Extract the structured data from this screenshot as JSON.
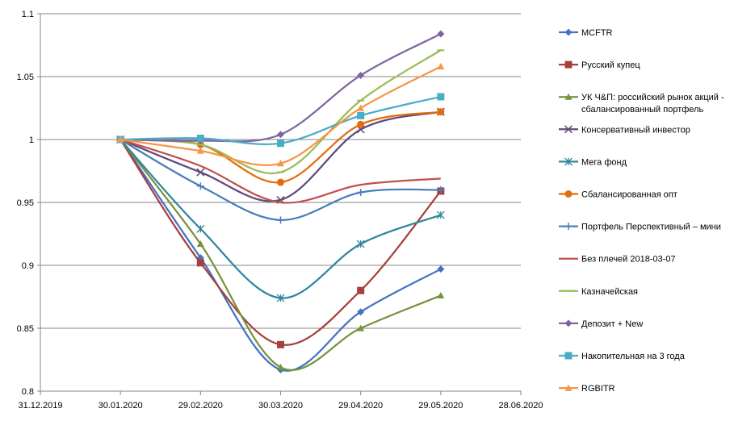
{
  "chart_data": {
    "type": "line",
    "title": "",
    "xlabel": "",
    "ylabel": "",
    "x_ticks": [
      "31.12.2019",
      "30.01.2020",
      "29.02.2020",
      "30.03.2020",
      "29.04.2020",
      "29.05.2020",
      "28.06.2020"
    ],
    "x": [
      "30.01.2020",
      "29.02.2020",
      "30.03.2020",
      "29.04.2020",
      "29.05.2020"
    ],
    "y_ticks": [
      "0.8",
      "0.85",
      "0.9",
      "0.95",
      "1",
      "1.05",
      "1.1"
    ],
    "ylim": [
      0.8,
      1.1
    ],
    "grid": "horizontal",
    "legend_position": "right",
    "series": [
      {
        "name": "MCFTR",
        "color": "#4472C4",
        "marker": "diamond",
        "values": [
          1.0,
          0.906,
          0.817,
          0.863,
          0.897
        ]
      },
      {
        "name": "Русский купец",
        "color": "#A5403E",
        "marker": "square",
        "values": [
          1.0,
          0.902,
          0.837,
          0.88,
          0.959
        ]
      },
      {
        "name": "УК Ч&П: российский рынок акций - сбалансированный портфель",
        "color": "#77933C",
        "marker": "triangle",
        "values": [
          1.0,
          0.917,
          0.819,
          0.85,
          0.876
        ]
      },
      {
        "name": "Консервативный инвестор",
        "color": "#604A7B",
        "marker": "x",
        "values": [
          1.0,
          0.974,
          0.952,
          1.008,
          1.022
        ]
      },
      {
        "name": "Мега фонд",
        "color": "#31859C",
        "marker": "star",
        "values": [
          1.0,
          0.929,
          0.874,
          0.917,
          0.94
        ]
      },
      {
        "name": "Сбалансированная опт",
        "color": "#E46C0A",
        "marker": "circle",
        "values": [
          1.0,
          0.996,
          0.966,
          1.012,
          1.022
        ]
      },
      {
        "name": "Портфель Перспективный – мини",
        "color": "#4A7EBB",
        "marker": "plus",
        "values": [
          1.0,
          0.963,
          0.936,
          0.958,
          0.96
        ]
      },
      {
        "name": "Без плечей 2018-03-07",
        "color": "#C0504D",
        "marker": "none",
        "values": [
          1.0,
          0.979,
          0.95,
          0.964,
          0.969
        ]
      },
      {
        "name": "Казначейская",
        "color": "#9BBB59",
        "marker": "dash",
        "values": [
          1.0,
          0.996,
          0.974,
          1.031,
          1.071
        ]
      },
      {
        "name": "Депозит + New",
        "color": "#8064A2",
        "marker": "diamond",
        "values": [
          1.0,
          0.999,
          1.004,
          1.051,
          1.084
        ]
      },
      {
        "name": "Накопительная на 3 года",
        "color": "#4BACC6",
        "marker": "square",
        "values": [
          1.0,
          1.001,
          0.997,
          1.019,
          1.034
        ]
      },
      {
        "name": "RGBITR",
        "color": "#F79646",
        "marker": "triangle",
        "values": [
          1.0,
          0.991,
          0.981,
          1.025,
          1.058
        ]
      }
    ]
  }
}
